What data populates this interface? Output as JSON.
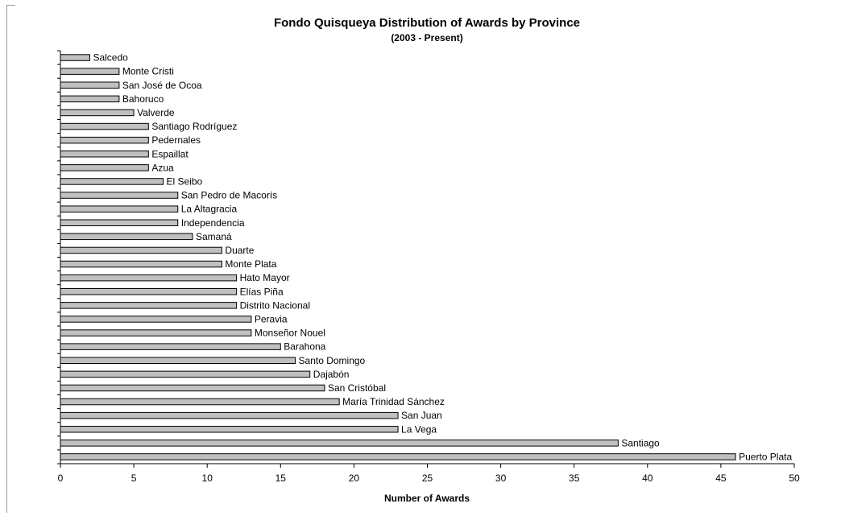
{
  "chart_data": {
    "type": "bar",
    "orientation": "horizontal",
    "title": "Fondo Quisqueya Distribution of Awards by Province",
    "subtitle": "(2003 - Present)",
    "xlabel": "Number of Awards",
    "ylabel": "",
    "xlim": [
      0,
      50
    ],
    "xticks": [
      "0",
      "5",
      "10",
      "15",
      "20",
      "25",
      "30",
      "35",
      "40",
      "45",
      "50"
    ],
    "grid": false,
    "legend": "none",
    "bar_color": "#c0c0c0",
    "categories": [
      "Salcedo",
      "Monte Cristi",
      "San José de Ocoa",
      "Bahoruco",
      "Valverde",
      "Santiago Rodríguez",
      "Pedernales",
      "Espaillat",
      "Azua",
      "El Seibo",
      "San Pedro de Macorís",
      "La Altagracia",
      "Independencia",
      "Samaná",
      "Duarte",
      "Monte Plata",
      "Hato Mayor",
      "Elías Piña",
      "Distrito Nacional",
      "Peravia",
      "Monseñor Nouel",
      "Barahona",
      "Santo Domingo",
      "Dajabón",
      "San Cristóbal",
      "María Trinidad Sánchez",
      "San Juan",
      "La Vega",
      "Santiago",
      "Puerto Plata"
    ],
    "values": [
      2,
      4,
      4,
      4,
      5,
      6,
      6,
      6,
      6,
      7,
      8,
      8,
      8,
      9,
      11,
      11,
      12,
      12,
      12,
      13,
      13,
      15,
      16,
      17,
      18,
      19,
      23,
      23,
      38,
      46
    ]
  }
}
